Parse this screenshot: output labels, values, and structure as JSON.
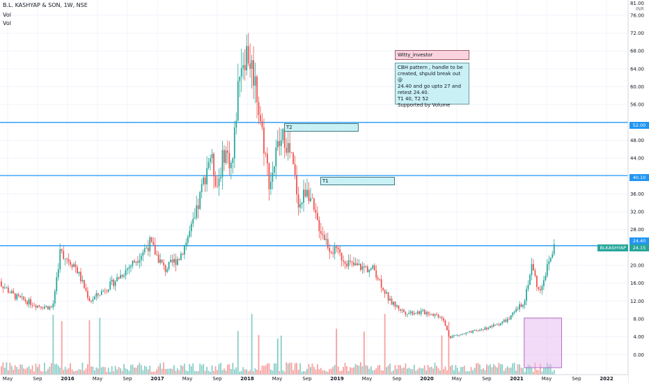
{
  "header": {
    "symbol_line": "B.L. KASHYAP & SON, 1W, NSE",
    "indicator_1": "Vol",
    "indicator_2": "Vol"
  },
  "axis": {
    "currency": "INR",
    "top_label": "81.00",
    "y_ticks": [
      "76.00",
      "72.00",
      "68.00",
      "64.00",
      "60.00",
      "56.00",
      "48.00",
      "44.00",
      "36.00",
      "32.00",
      "28.00",
      "20.00",
      "16.00",
      "12.00",
      "8.00",
      "4.00",
      "0.00"
    ],
    "x_ticks": [
      "May",
      "Sep",
      "2016",
      "May",
      "Sep",
      "2017",
      "May",
      "Sep",
      "2018",
      "May",
      "Sep",
      "2019",
      "May",
      "Sep",
      "2020",
      "May",
      "Sep",
      "2021",
      "May",
      "Sep",
      "2022"
    ]
  },
  "notes": {
    "author": "Witty_investor",
    "lines": [
      "CBH pattern , handle to be",
      "created, shpuld break out @",
      "24.40 and go upto 27 and",
      "retest 24.40.",
      "T1 40, T2 52",
      "Supported by Volume"
    ]
  },
  "levels": {
    "t2_label": "T2",
    "t2_value": "52.00",
    "t1_label": "T1",
    "t1_value": "40.10",
    "breakout_value": "24.40",
    "current_symbol": "BLKASHYAP",
    "current_value": "24.15"
  },
  "colors": {
    "up": "#26a69a",
    "down": "#ef5350",
    "level_line": "#2196f3",
    "highlight_box": "#e8bdf0"
  },
  "chart_data": {
    "type": "candlestick",
    "title": "B.L. KASHYAP & SON, 1W, NSE",
    "ylabel": "INR",
    "ylim": [
      -3,
      81
    ],
    "horizontal_levels": [
      52.0,
      40.1,
      24.4
    ],
    "x_ticks": [
      "May",
      "Sep",
      "2016",
      "May",
      "Sep",
      "2017",
      "May",
      "Sep",
      "2018",
      "May",
      "Sep",
      "2019",
      "May",
      "Sep",
      "2020",
      "May",
      "Sep",
      "2021",
      "May",
      "Sep",
      "2022"
    ],
    "price_path": [
      {
        "date": "2015-03",
        "close": 17.5
      },
      {
        "date": "2015-06",
        "close": 13.0
      },
      {
        "date": "2015-09",
        "close": 11.0
      },
      {
        "date": "2015-11",
        "close": 10.5
      },
      {
        "date": "2015-12",
        "close": 23.0
      },
      {
        "date": "2016-02",
        "close": 20.0
      },
      {
        "date": "2016-04",
        "close": 12.0
      },
      {
        "date": "2016-07",
        "close": 16.0
      },
      {
        "date": "2016-10",
        "close": 21.0
      },
      {
        "date": "2016-12",
        "close": 25.0
      },
      {
        "date": "2017-02",
        "close": 19.0
      },
      {
        "date": "2017-04",
        "close": 22.0
      },
      {
        "date": "2017-06",
        "close": 30.0
      },
      {
        "date": "2017-08",
        "close": 45.0
      },
      {
        "date": "2017-09",
        "close": 38.0
      },
      {
        "date": "2017-10",
        "close": 46.0
      },
      {
        "date": "2017-11",
        "close": 42.0
      },
      {
        "date": "2017-12",
        "close": 65.0
      },
      {
        "date": "2018-01",
        "close": 68.0
      },
      {
        "date": "2018-02",
        "close": 62.0
      },
      {
        "date": "2018-03",
        "close": 50.0
      },
      {
        "date": "2018-04",
        "close": 38.0
      },
      {
        "date": "2018-05",
        "close": 46.0
      },
      {
        "date": "2018-06",
        "close": 49.0
      },
      {
        "date": "2018-07",
        "close": 43.0
      },
      {
        "date": "2018-08",
        "close": 33.0
      },
      {
        "date": "2018-09",
        "close": 38.0
      },
      {
        "date": "2018-10",
        "close": 31.0
      },
      {
        "date": "2018-12",
        "close": 24.0
      },
      {
        "date": "2019-03",
        "close": 20.0
      },
      {
        "date": "2019-06",
        "close": 19.0
      },
      {
        "date": "2019-08",
        "close": 12.0
      },
      {
        "date": "2019-10",
        "close": 9.5
      },
      {
        "date": "2020-01",
        "close": 9.5
      },
      {
        "date": "2020-03",
        "close": 8.5
      },
      {
        "date": "2020-04",
        "close": 4.0
      },
      {
        "date": "2020-07",
        "close": 5.0
      },
      {
        "date": "2020-10",
        "close": 6.5
      },
      {
        "date": "2020-12",
        "close": 8.0
      },
      {
        "date": "2021-02",
        "close": 12.0
      },
      {
        "date": "2021-03",
        "close": 20.0
      },
      {
        "date": "2021-04",
        "close": 14.0
      },
      {
        "date": "2021-06",
        "close": 24.15
      }
    ]
  }
}
